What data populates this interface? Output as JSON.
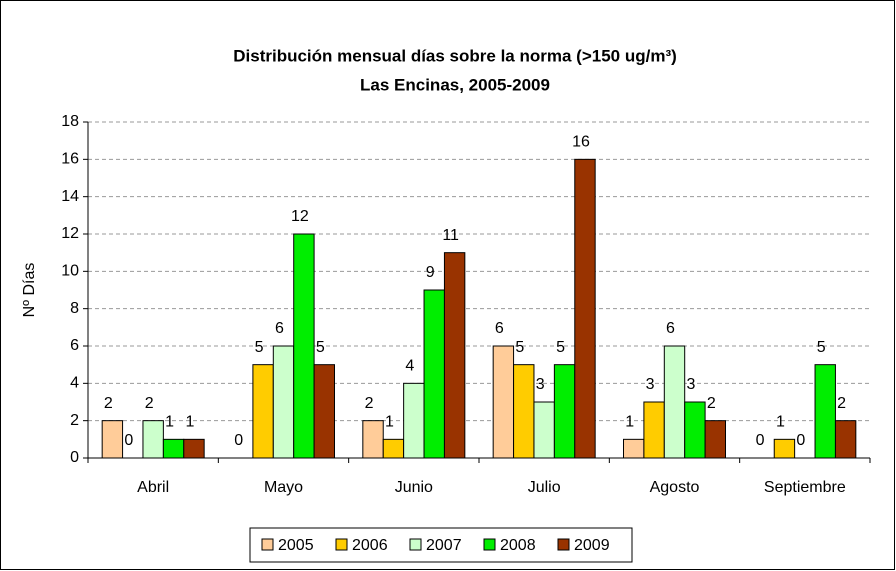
{
  "chart_data": {
    "type": "bar",
    "title": "Distribución mensual días sobre la norma (>150 ug/m³)",
    "subtitle": "Las Encinas, 2005-2009",
    "y_label": "Nº Días",
    "categories": [
      "Abril",
      "Mayo",
      "Junio",
      "Julio",
      "Agosto",
      "Septiembre"
    ],
    "series": [
      {
        "name": "2005",
        "color": "#ffcc99",
        "values": [
          2,
          0,
          2,
          6,
          1,
          0
        ]
      },
      {
        "name": "2006",
        "color": "#ffcc00",
        "values": [
          0,
          5,
          1,
          5,
          3,
          1
        ]
      },
      {
        "name": "2007",
        "color": "#ccffcc",
        "values": [
          2,
          6,
          4,
          3,
          6,
          0
        ]
      },
      {
        "name": "2008",
        "color": "#00ee00",
        "values": [
          1,
          12,
          9,
          5,
          3,
          5
        ]
      },
      {
        "name": "2009",
        "color": "#993300",
        "values": [
          1,
          5,
          11,
          16,
          2,
          2
        ]
      }
    ],
    "ylim": [
      0,
      18
    ],
    "yticks": [
      0,
      2,
      4,
      6,
      8,
      10,
      12,
      14,
      16,
      18
    ],
    "grid": true,
    "legend": "bottom"
  }
}
